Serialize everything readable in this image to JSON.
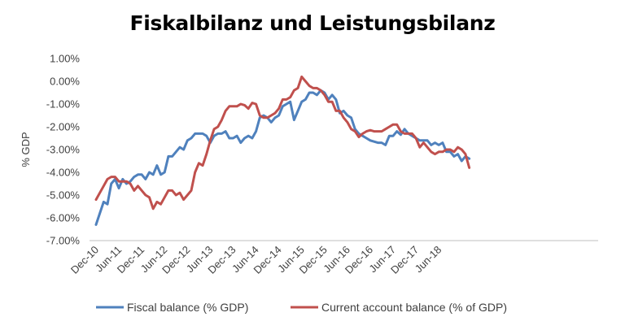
{
  "chart_data": {
    "type": "line",
    "title": "Fiskalbilanz und Leistungsbilanz",
    "xlabel": "",
    "ylabel": "% GDP",
    "ylim": [
      -7,
      1
    ],
    "y_ticks": [
      "1.00%",
      "0.00%",
      "-1.00%",
      "-2.00%",
      "-3.00%",
      "-4.00%",
      "-5.00%",
      "-6.00%",
      "-7.00%"
    ],
    "x_ticks": [
      "Dec-10",
      "Jun-11",
      "Dec-11",
      "Jun-12",
      "Dec-12",
      "Jun-13",
      "Dec-13",
      "Jun-14",
      "Dec-14",
      "Jun-15",
      "Dec-15",
      "Jun-16",
      "Dec-16",
      "Jun-17",
      "Dec-17",
      "Jun-18"
    ],
    "x_start": "Dec-10",
    "x_unit": "month",
    "grid": false,
    "legend": "bottom",
    "series": [
      {
        "name": "Fiscal balance (% GDP)",
        "color": "#4F81BD",
        "values": [
          -6.3,
          -5.8,
          -5.3,
          -5.4,
          -4.5,
          -4.3,
          -4.7,
          -4.3,
          -4.5,
          -4.4,
          -4.2,
          -4.1,
          -4.1,
          -4.3,
          -4.0,
          -4.1,
          -3.7,
          -4.1,
          -4.0,
          -3.3,
          -3.3,
          -3.1,
          -2.9,
          -3.0,
          -2.6,
          -2.5,
          -2.3,
          -2.3,
          -2.3,
          -2.4,
          -2.7,
          -2.4,
          -2.3,
          -2.3,
          -2.2,
          -2.5,
          -2.5,
          -2.4,
          -2.7,
          -2.5,
          -2.4,
          -2.5,
          -2.2,
          -1.6,
          -1.5,
          -1.6,
          -1.8,
          -1.6,
          -1.5,
          -1.1,
          -1.0,
          -0.9,
          -1.7,
          -1.3,
          -0.9,
          -0.8,
          -0.5,
          -0.5,
          -0.6,
          -0.4,
          -0.5,
          -0.8,
          -0.6,
          -0.8,
          -1.4,
          -1.3,
          -1.5,
          -1.6,
          -2.1,
          -2.3,
          -2.4,
          -2.5,
          -2.6,
          -2.65,
          -2.7,
          -2.7,
          -2.8,
          -2.4,
          -2.4,
          -2.2,
          -2.35,
          -2.1,
          -2.3,
          -2.4,
          -2.5,
          -2.6,
          -2.6,
          -2.6,
          -2.8,
          -2.7,
          -2.8,
          -2.7,
          -3.1,
          -3.1,
          -3.3,
          -3.2,
          -3.5,
          -3.3,
          -3.4
        ]
      },
      {
        "name": "Current account balance (% of GDP)",
        "color": "#C0504D",
        "values": [
          -5.2,
          -4.9,
          -4.6,
          -4.3,
          -4.2,
          -4.2,
          -4.4,
          -4.4,
          -4.4,
          -4.5,
          -4.8,
          -4.6,
          -4.8,
          -5.0,
          -5.1,
          -5.6,
          -5.3,
          -5.4,
          -5.1,
          -4.8,
          -4.8,
          -5.0,
          -4.9,
          -5.2,
          -5.0,
          -4.8,
          -4.0,
          -3.6,
          -3.7,
          -3.2,
          -2.6,
          -2.1,
          -2.0,
          -1.7,
          -1.3,
          -1.1,
          -1.1,
          -1.1,
          -1.0,
          -1.05,
          -1.2,
          -0.95,
          -1.0,
          -1.5,
          -1.6,
          -1.6,
          -1.5,
          -1.4,
          -1.2,
          -0.8,
          -0.8,
          -0.7,
          -0.4,
          -0.3,
          0.2,
          0.0,
          -0.2,
          -0.3,
          -0.3,
          -0.4,
          -0.6,
          -0.9,
          -0.9,
          -1.3,
          -1.3,
          -1.6,
          -1.8,
          -2.1,
          -2.2,
          -2.45,
          -2.3,
          -2.2,
          -2.15,
          -2.2,
          -2.2,
          -2.2,
          -2.1,
          -2.0,
          -1.9,
          -1.9,
          -2.2,
          -2.3,
          -2.3,
          -2.3,
          -2.5,
          -2.9,
          -2.7,
          -2.9,
          -3.1,
          -3.2,
          -3.1,
          -3.1,
          -3.0,
          -3.0,
          -3.1,
          -2.9,
          -3.0,
          -3.2,
          -3.8
        ]
      }
    ]
  }
}
